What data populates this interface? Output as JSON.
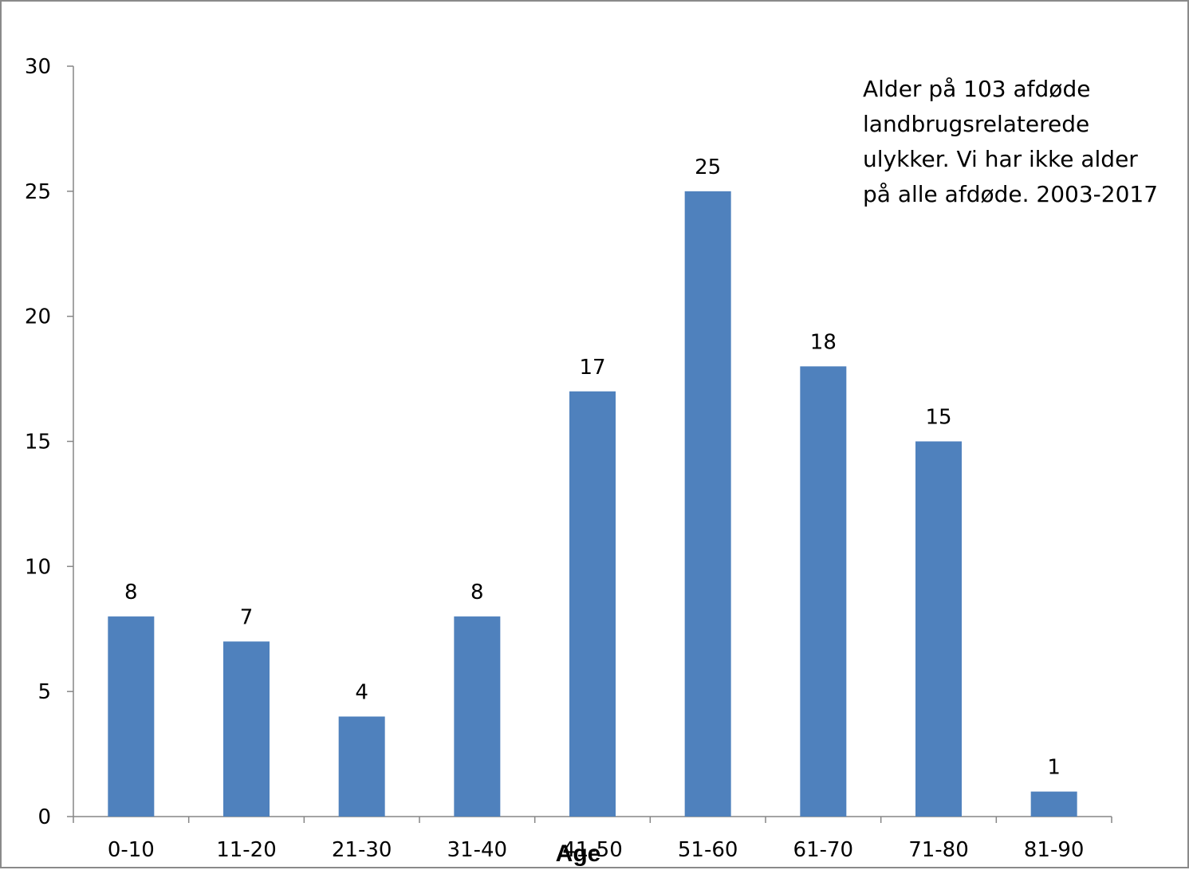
{
  "chart_data": {
    "type": "bar",
    "categories": [
      "0-10",
      "11-20",
      "21-30",
      "31-40",
      "41-50",
      "51-60",
      "61-70",
      "71-80",
      "81-90"
    ],
    "values": [
      8,
      7,
      4,
      8,
      17,
      25,
      18,
      15,
      1
    ],
    "ylim": [
      0,
      30
    ],
    "yticks": [
      0,
      5,
      10,
      15,
      20,
      25,
      30
    ],
    "xlabel": "Age",
    "ylabel": "",
    "annotation": "Alder på 103 afdøde landbrugsrelaterede ulykker. Vi har ikke alder på alle afdøde. 2003-2017",
    "grid": false,
    "legend": "none",
    "data_labels": true,
    "bar_color": "#4f81bd"
  }
}
